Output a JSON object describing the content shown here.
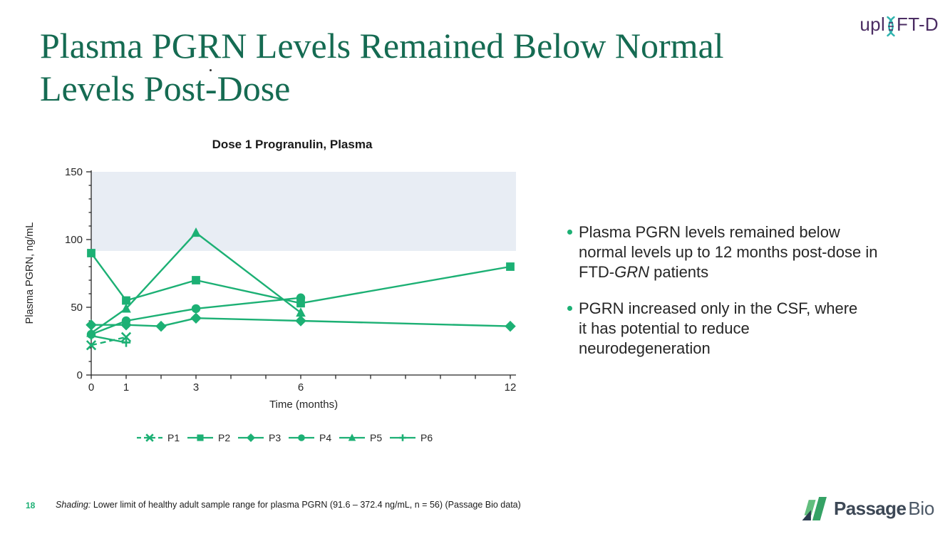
{
  "slide": {
    "title_line1": "Plasma PGRN Levels Remained Below Normal",
    "title_line2": "Levels Post-Dose",
    "page_number": "18",
    "footnote_italic_lead": "Shading:",
    "footnote_rest": " Lower limit of healthy adult sample range for plasma PGRN (91.6 – 372.4 ng/mL, n = 56) (Passage Bio data)"
  },
  "logos": {
    "uplift_pre": "upl",
    "uplift_post": "FT-D",
    "passage_word1": "Passage",
    "passage_word2": "Bio"
  },
  "bullets": [
    {
      "lines": [
        [
          {
            "t": "Plasma PGRN levels remained below"
          }
        ],
        [
          {
            "t": "normal levels up to 12 months post-dose in"
          }
        ],
        [
          {
            "t": "FTD-"
          },
          {
            "t": "GRN",
            "i": true
          },
          {
            "t": " patients"
          }
        ]
      ]
    },
    {
      "lines": [
        [
          {
            "t": "PGRN increased only in the CSF, where"
          }
        ],
        [
          {
            "t": "it has potential to reduce"
          }
        ],
        [
          {
            "t": "neurodegeneration"
          }
        ]
      ]
    }
  ],
  "chart_data": {
    "type": "line",
    "title": "Dose 1 Progranulin, Plasma",
    "xlabel": "Time (months)",
    "ylabel": "Plasma PGRN, ng/mL",
    "xlim": [
      0,
      12
    ],
    "ylim": [
      0,
      150
    ],
    "y_ticks": [
      0,
      50,
      100,
      150
    ],
    "y_minor_tick_interval": 10,
    "x_ticks_all_months": [
      0,
      1,
      2,
      3,
      4,
      5,
      6,
      7,
      8,
      9,
      10,
      11,
      12
    ],
    "x_ticks_labeled": [
      0,
      1,
      3,
      6,
      12
    ],
    "grid": false,
    "legend_position": "bottom",
    "line_color": "#1CB074",
    "shaded_band": {
      "from": 91.6,
      "to": 150,
      "color": "#E8EDF4",
      "meaning": "Lower limit of healthy adult sample range for plasma PGRN"
    },
    "series": [
      {
        "name": "P1",
        "marker": "x",
        "dashed": true,
        "points": [
          [
            0,
            22
          ],
          [
            1,
            28
          ]
        ]
      },
      {
        "name": "P2",
        "marker": "square",
        "dashed": false,
        "points": [
          [
            0,
            90
          ],
          [
            1,
            55
          ],
          [
            3,
            70
          ],
          [
            6,
            53
          ],
          [
            12,
            80
          ]
        ]
      },
      {
        "name": "P3",
        "marker": "diamond",
        "dashed": false,
        "points": [
          [
            0,
            37
          ],
          [
            1,
            37
          ],
          [
            2,
            36
          ],
          [
            3,
            42
          ],
          [
            6,
            40
          ],
          [
            12,
            36
          ]
        ]
      },
      {
        "name": "P4",
        "marker": "circle",
        "dashed": false,
        "points": [
          [
            0,
            30
          ],
          [
            1,
            40
          ],
          [
            3,
            49
          ],
          [
            6,
            57
          ]
        ]
      },
      {
        "name": "P5",
        "marker": "triangle",
        "dashed": false,
        "points": [
          [
            0,
            31
          ],
          [
            1,
            49
          ],
          [
            3,
            105
          ],
          [
            6,
            46
          ]
        ]
      },
      {
        "name": "P6",
        "marker": "plus",
        "dashed": false,
        "points": [
          [
            0,
            29
          ],
          [
            1,
            24
          ]
        ]
      }
    ]
  },
  "colors": {
    "accent_green": "#1CB074",
    "title_green": "#156B52",
    "band_fill": "#E8EDF4",
    "uplift_purple": "#4B2D63",
    "helix_teal": "#2FB3AE",
    "passage_slate": "#3D4856"
  }
}
